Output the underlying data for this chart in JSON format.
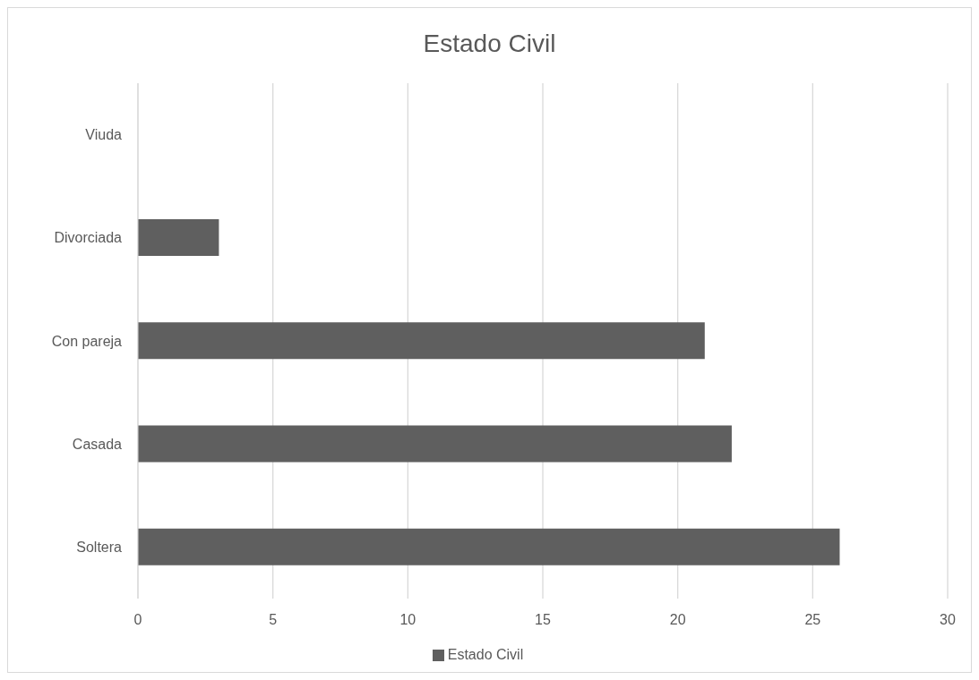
{
  "chart_data": {
    "type": "bar",
    "title": "Estado Civil",
    "orientation": "horizontal",
    "categories": [
      "Viuda",
      "Divorciada",
      "Con pareja",
      "Casada",
      "Soltera"
    ],
    "series": [
      {
        "name": "Estado Civil",
        "color": "#5f5f5f",
        "values": [
          0,
          3,
          21,
          22,
          26
        ]
      }
    ],
    "xlim": [
      0,
      30
    ],
    "xticks": [
      0,
      5,
      10,
      15,
      20,
      25,
      30
    ],
    "grid": "x",
    "legend": "bottom"
  }
}
